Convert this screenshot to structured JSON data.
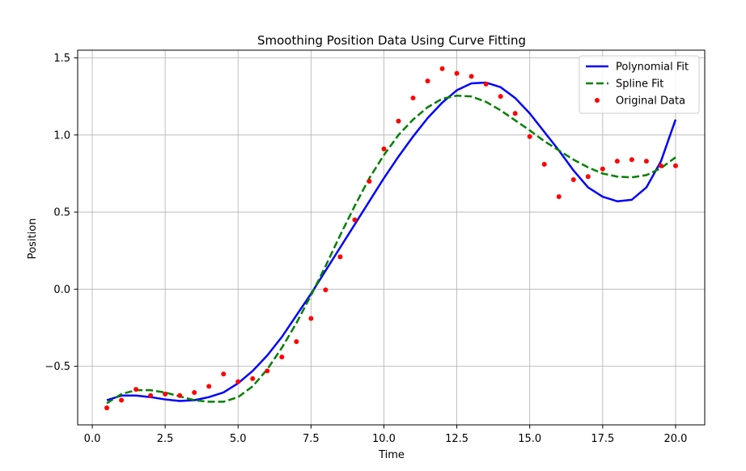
{
  "chart_data": {
    "type": "scatter",
    "title": "Smoothing Position Data Using Curve Fitting",
    "xlabel": "Time",
    "ylabel": "Position",
    "xlim": [
      -0.5,
      21.0
    ],
    "ylim": [
      -0.88,
      1.55
    ],
    "xticks": [
      0.0,
      2.5,
      5.0,
      7.5,
      10.0,
      12.5,
      15.0,
      17.5,
      20.0
    ],
    "xtick_labels": [
      "0.0",
      "2.5",
      "5.0",
      "7.5",
      "10.0",
      "12.5",
      "15.0",
      "17.5",
      "20.0"
    ],
    "yticks": [
      -0.5,
      0.0,
      0.5,
      1.0,
      1.5
    ],
    "ytick_labels": [
      "−0.5",
      "0.0",
      "0.5",
      "1.0",
      "1.5"
    ],
    "grid": true,
    "legend_position": "top-right",
    "series": [
      {
        "name": "Polynomial Fit",
        "kind": "line",
        "style": "solid",
        "color": "#0000ff",
        "x": [
          0.5,
          1.0,
          1.5,
          2.0,
          2.5,
          3.0,
          3.5,
          4.0,
          4.5,
          5.0,
          5.5,
          6.0,
          6.5,
          7.0,
          7.5,
          8.0,
          8.5,
          9.0,
          9.5,
          10.0,
          10.5,
          11.0,
          11.5,
          12.0,
          12.5,
          13.0,
          13.5,
          14.0,
          14.5,
          15.0,
          15.5,
          16.0,
          16.5,
          17.0,
          17.5,
          18.0,
          18.5,
          19.0,
          19.5,
          20.0
        ],
        "y": [
          -0.72,
          -0.69,
          -0.69,
          -0.7,
          -0.715,
          -0.725,
          -0.72,
          -0.7,
          -0.67,
          -0.61,
          -0.53,
          -0.43,
          -0.31,
          -0.17,
          -0.03,
          0.12,
          0.27,
          0.42,
          0.57,
          0.72,
          0.86,
          0.99,
          1.11,
          1.21,
          1.29,
          1.335,
          1.34,
          1.31,
          1.24,
          1.14,
          1.02,
          0.9,
          0.77,
          0.66,
          0.6,
          0.57,
          0.58,
          0.66,
          0.83,
          1.1
        ]
      },
      {
        "name": "Spline Fit",
        "kind": "line",
        "style": "dashed",
        "color": "#008000",
        "x": [
          0.5,
          1.0,
          1.5,
          2.0,
          2.5,
          3.0,
          3.5,
          4.0,
          4.5,
          5.0,
          5.5,
          6.0,
          6.5,
          7.0,
          7.5,
          8.0,
          8.5,
          9.0,
          9.5,
          10.0,
          10.5,
          11.0,
          11.5,
          12.0,
          12.5,
          13.0,
          13.5,
          14.0,
          14.5,
          15.0,
          15.5,
          16.0,
          16.5,
          17.0,
          17.5,
          18.0,
          18.5,
          19.0,
          19.5,
          20.0
        ],
        "y": [
          -0.74,
          -0.68,
          -0.655,
          -0.655,
          -0.67,
          -0.695,
          -0.72,
          -0.73,
          -0.73,
          -0.7,
          -0.63,
          -0.52,
          -0.38,
          -0.22,
          -0.04,
          0.15,
          0.35,
          0.54,
          0.72,
          0.87,
          1.0,
          1.1,
          1.18,
          1.235,
          1.255,
          1.25,
          1.215,
          1.16,
          1.095,
          1.03,
          0.96,
          0.9,
          0.84,
          0.79,
          0.75,
          0.73,
          0.725,
          0.74,
          0.785,
          0.855
        ]
      },
      {
        "name": "Original Data",
        "kind": "scatter",
        "color": "#ff0000",
        "x": [
          0.5,
          1.0,
          1.5,
          2.0,
          2.5,
          3.0,
          3.5,
          4.0,
          4.5,
          5.0,
          5.5,
          6.0,
          6.5,
          7.0,
          7.5,
          8.0,
          8.5,
          9.0,
          9.5,
          10.0,
          10.5,
          11.0,
          11.5,
          12.0,
          12.5,
          13.0,
          13.5,
          14.0,
          14.5,
          15.0,
          15.5,
          16.0,
          16.5,
          17.0,
          17.5,
          18.0,
          18.5,
          19.0,
          19.5,
          20.0
        ],
        "y": [
          -0.77,
          -0.72,
          -0.65,
          -0.69,
          -0.68,
          -0.69,
          -0.67,
          -0.63,
          -0.55,
          -0.6,
          -0.58,
          -0.53,
          -0.44,
          -0.34,
          -0.19,
          -0.005,
          0.21,
          0.45,
          0.7,
          0.91,
          1.09,
          1.24,
          1.35,
          1.43,
          1.4,
          1.38,
          1.33,
          1.25,
          1.14,
          0.99,
          0.81,
          0.6,
          0.71,
          0.73,
          0.78,
          0.83,
          0.84,
          0.83,
          0.8,
          0.8
        ]
      }
    ]
  }
}
